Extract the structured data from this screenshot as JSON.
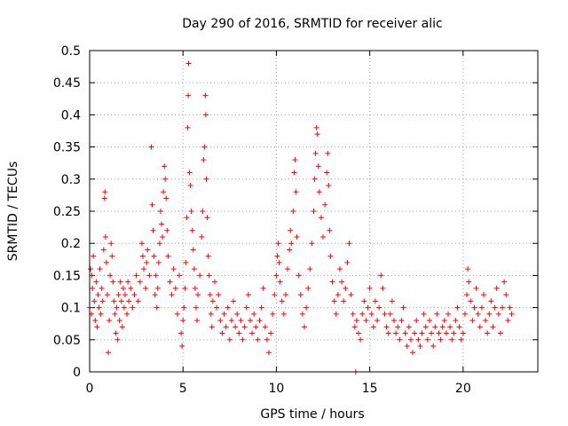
{
  "chart_data": {
    "type": "scatter",
    "title": "Day 290 of 2016, SRMTID for receiver alic",
    "xlabel": "GPS time / hours",
    "ylabel": "SRMTID / TECUs",
    "xlim": [
      0,
      24
    ],
    "ylim": [
      0,
      0.5
    ],
    "xticks": [
      0,
      5,
      10,
      15,
      20
    ],
    "xtick_labels": [
      "0",
      "5",
      "10",
      "15",
      "20"
    ],
    "yticks": [
      0,
      0.05,
      0.1,
      0.15,
      0.2,
      0.25,
      0.3,
      0.35,
      0.4,
      0.45,
      0.5
    ],
    "ytick_labels": [
      "0",
      "0.05",
      "0.1",
      "0.15",
      "0.2",
      "0.25",
      "0.3",
      "0.35",
      "0.4",
      "0.45",
      "0.5"
    ],
    "grid": true,
    "marker": "+",
    "series": [
      {
        "name": "SRMTID",
        "color": "#ff0000",
        "points": [
          [
            0.0,
            0.1
          ],
          [
            0.05,
            0.16
          ],
          [
            0.1,
            0.09
          ],
          [
            0.12,
            0.15
          ],
          [
            0.15,
            0.13
          ],
          [
            0.2,
            0.18
          ],
          [
            0.25,
            0.11
          ],
          [
            0.3,
            0.08
          ],
          [
            0.35,
            0.14
          ],
          [
            0.4,
            0.07
          ],
          [
            0.45,
            0.12
          ],
          [
            0.5,
            0.1
          ],
          [
            0.55,
            0.16
          ],
          [
            0.6,
            0.09
          ],
          [
            0.65,
            0.13
          ],
          [
            0.7,
            0.11
          ],
          [
            0.75,
            0.19
          ],
          [
            0.8,
            0.27
          ],
          [
            0.82,
            0.28
          ],
          [
            0.85,
            0.21
          ],
          [
            0.9,
            0.17
          ],
          [
            0.95,
            0.12
          ],
          [
            1.0,
            0.03
          ],
          [
            1.05,
            0.08
          ],
          [
            1.1,
            0.15
          ],
          [
            1.15,
            0.2
          ],
          [
            1.2,
            0.18
          ],
          [
            1.25,
            0.14
          ],
          [
            1.3,
            0.11
          ],
          [
            1.35,
            0.09
          ],
          [
            1.4,
            0.06
          ],
          [
            1.45,
            0.1
          ],
          [
            1.5,
            0.05
          ],
          [
            1.55,
            0.12
          ],
          [
            1.6,
            0.08
          ],
          [
            1.65,
            0.14
          ],
          [
            1.7,
            0.11
          ],
          [
            1.75,
            0.07
          ],
          [
            1.8,
            0.13
          ],
          [
            1.85,
            0.1
          ],
          [
            1.9,
            0.12
          ],
          [
            2.0,
            0.09
          ],
          [
            2.05,
            0.14
          ],
          [
            2.1,
            0.11
          ],
          [
            2.2,
            0.13
          ],
          [
            2.3,
            0.1
          ],
          [
            2.4,
            0.12
          ],
          [
            2.5,
            0.15
          ],
          [
            2.6,
            0.11
          ],
          [
            2.7,
            0.14
          ],
          [
            2.8,
            0.2
          ],
          [
            2.85,
            0.18
          ],
          [
            2.9,
            0.16
          ],
          [
            3.0,
            0.13
          ],
          [
            3.05,
            0.17
          ],
          [
            3.1,
            0.19
          ],
          [
            3.2,
            0.15
          ],
          [
            3.3,
            0.35
          ],
          [
            3.35,
            0.26
          ],
          [
            3.4,
            0.22
          ],
          [
            3.45,
            0.18
          ],
          [
            3.5,
            0.12
          ],
          [
            3.55,
            0.15
          ],
          [
            3.6,
            0.1
          ],
          [
            3.65,
            0.13
          ],
          [
            3.7,
            0.17
          ],
          [
            3.75,
            0.2
          ],
          [
            3.8,
            0.25
          ],
          [
            3.85,
            0.23
          ],
          [
            3.9,
            0.21
          ],
          [
            3.95,
            0.28
          ],
          [
            4.0,
            0.32
          ],
          [
            4.05,
            0.3
          ],
          [
            4.1,
            0.27
          ],
          [
            4.15,
            0.22
          ],
          [
            4.2,
            0.18
          ],
          [
            4.3,
            0.14
          ],
          [
            4.4,
            0.12
          ],
          [
            4.5,
            0.16
          ],
          [
            4.6,
            0.13
          ],
          [
            4.7,
            0.09
          ],
          [
            4.8,
            0.15
          ],
          [
            4.9,
            0.06
          ],
          [
            4.95,
            0.04
          ],
          [
            5.0,
            0.08
          ],
          [
            5.05,
            0.1
          ],
          [
            5.1,
            0.13
          ],
          [
            5.15,
            0.17
          ],
          [
            5.2,
            0.24
          ],
          [
            5.25,
            0.38
          ],
          [
            5.28,
            0.43
          ],
          [
            5.3,
            0.48
          ],
          [
            5.35,
            0.31
          ],
          [
            5.4,
            0.29
          ],
          [
            5.45,
            0.25
          ],
          [
            5.5,
            0.22
          ],
          [
            5.55,
            0.19
          ],
          [
            5.6,
            0.16
          ],
          [
            5.65,
            0.13
          ],
          [
            5.7,
            0.1
          ],
          [
            5.75,
            0.08
          ],
          [
            5.8,
            0.12
          ],
          [
            5.9,
            0.15
          ],
          [
            6.0,
            0.21
          ],
          [
            6.05,
            0.25
          ],
          [
            6.1,
            0.33
          ],
          [
            6.15,
            0.35
          ],
          [
            6.2,
            0.43
          ],
          [
            6.22,
            0.4
          ],
          [
            6.25,
            0.3
          ],
          [
            6.3,
            0.24
          ],
          [
            6.35,
            0.18
          ],
          [
            6.4,
            0.15
          ],
          [
            6.45,
            0.12
          ],
          [
            6.5,
            0.09
          ],
          [
            6.55,
            0.07
          ],
          [
            6.6,
            0.11
          ],
          [
            6.7,
            0.14
          ],
          [
            6.8,
            0.1
          ],
          [
            6.9,
            0.12
          ],
          [
            7.0,
            0.08
          ],
          [
            7.1,
            0.06
          ],
          [
            7.2,
            0.09
          ],
          [
            7.3,
            0.07
          ],
          [
            7.4,
            0.1
          ],
          [
            7.5,
            0.05
          ],
          [
            7.6,
            0.08
          ],
          [
            7.7,
            0.11
          ],
          [
            7.8,
            0.07
          ],
          [
            7.9,
            0.09
          ],
          [
            8.0,
            0.06
          ],
          [
            8.1,
            0.08
          ],
          [
            8.2,
            0.05
          ],
          [
            8.3,
            0.07
          ],
          [
            8.4,
            0.1
          ],
          [
            8.5,
            0.12
          ],
          [
            8.6,
            0.08
          ],
          [
            8.7,
            0.06
          ],
          [
            8.8,
            0.09
          ],
          [
            8.9,
            0.07
          ],
          [
            9.0,
            0.05
          ],
          [
            9.1,
            0.08
          ],
          [
            9.2,
            0.1
          ],
          [
            9.3,
            0.13
          ],
          [
            9.4,
            0.07
          ],
          [
            9.5,
            0.05
          ],
          [
            9.6,
            0.03
          ],
          [
            9.7,
            0.06
          ],
          [
            9.8,
            0.09
          ],
          [
            9.9,
            0.12
          ],
          [
            10.0,
            0.15
          ],
          [
            10.05,
            0.18
          ],
          [
            10.1,
            0.2
          ],
          [
            10.15,
            0.17
          ],
          [
            10.2,
            0.14
          ],
          [
            10.3,
            0.11
          ],
          [
            10.4,
            0.09
          ],
          [
            10.5,
            0.12
          ],
          [
            10.6,
            0.16
          ],
          [
            10.7,
            0.19
          ],
          [
            10.75,
            0.22
          ],
          [
            10.8,
            0.2
          ],
          [
            10.9,
            0.25
          ],
          [
            10.95,
            0.31
          ],
          [
            11.0,
            0.33
          ],
          [
            11.05,
            0.28
          ],
          [
            11.1,
            0.21
          ],
          [
            11.2,
            0.15
          ],
          [
            11.3,
            0.12
          ],
          [
            11.4,
            0.09
          ],
          [
            11.5,
            0.07
          ],
          [
            11.6,
            0.1
          ],
          [
            11.7,
            0.13
          ],
          [
            11.8,
            0.16
          ],
          [
            11.9,
            0.2
          ],
          [
            12.0,
            0.25
          ],
          [
            12.05,
            0.3
          ],
          [
            12.1,
            0.34
          ],
          [
            12.15,
            0.38
          ],
          [
            12.2,
            0.37
          ],
          [
            12.25,
            0.32
          ],
          [
            12.3,
            0.28
          ],
          [
            12.4,
            0.24
          ],
          [
            12.5,
            0.21
          ],
          [
            12.6,
            0.26
          ],
          [
            12.7,
            0.31
          ],
          [
            12.75,
            0.34
          ],
          [
            12.8,
            0.29
          ],
          [
            12.85,
            0.22
          ],
          [
            12.9,
            0.18
          ],
          [
            13.0,
            0.14
          ],
          [
            13.1,
            0.11
          ],
          [
            13.2,
            0.09
          ],
          [
            13.3,
            0.12
          ],
          [
            13.4,
            0.16
          ],
          [
            13.5,
            0.14
          ],
          [
            13.6,
            0.11
          ],
          [
            13.7,
            0.13
          ],
          [
            13.8,
            0.17
          ],
          [
            13.9,
            0.2
          ],
          [
            14.0,
            0.12
          ],
          [
            14.1,
            0.09
          ],
          [
            14.2,
            0.07
          ],
          [
            14.25,
            0.0
          ],
          [
            14.3,
            0.08
          ],
          [
            14.4,
            0.06
          ],
          [
            14.5,
            0.05
          ],
          [
            14.6,
            0.09
          ],
          [
            14.7,
            0.11
          ],
          [
            14.8,
            0.08
          ],
          [
            14.9,
            0.1
          ],
          [
            15.0,
            0.13
          ],
          [
            15.1,
            0.09
          ],
          [
            15.2,
            0.07
          ],
          [
            15.3,
            0.11
          ],
          [
            15.4,
            0.08
          ],
          [
            15.5,
            0.1
          ],
          [
            15.6,
            0.15
          ],
          [
            15.7,
            0.13
          ],
          [
            15.8,
            0.09
          ],
          [
            15.9,
            0.07
          ],
          [
            16.0,
            0.06
          ],
          [
            16.1,
            0.09
          ],
          [
            16.2,
            0.11
          ],
          [
            16.3,
            0.08
          ],
          [
            16.4,
            0.06
          ],
          [
            16.5,
            0.07
          ],
          [
            16.6,
            0.05
          ],
          [
            16.7,
            0.08
          ],
          [
            16.8,
            0.1
          ],
          [
            16.9,
            0.06
          ],
          [
            17.0,
            0.04
          ],
          [
            17.1,
            0.07
          ],
          [
            17.2,
            0.05
          ],
          [
            17.3,
            0.03
          ],
          [
            17.4,
            0.06
          ],
          [
            17.5,
            0.08
          ],
          [
            17.6,
            0.05
          ],
          [
            17.7,
            0.04
          ],
          [
            17.8,
            0.06
          ],
          [
            17.9,
            0.09
          ],
          [
            18.0,
            0.07
          ],
          [
            18.1,
            0.05
          ],
          [
            18.2,
            0.08
          ],
          [
            18.3,
            0.06
          ],
          [
            18.4,
            0.04
          ],
          [
            18.5,
            0.07
          ],
          [
            18.6,
            0.09
          ],
          [
            18.7,
            0.06
          ],
          [
            18.8,
            0.05
          ],
          [
            18.9,
            0.07
          ],
          [
            19.0,
            0.08
          ],
          [
            19.1,
            0.06
          ],
          [
            19.2,
            0.09
          ],
          [
            19.3,
            0.07
          ],
          [
            19.4,
            0.05
          ],
          [
            19.5,
            0.06
          ],
          [
            19.6,
            0.08
          ],
          [
            19.7,
            0.1
          ],
          [
            19.8,
            0.07
          ],
          [
            19.9,
            0.05
          ],
          [
            20.0,
            0.06
          ],
          [
            20.1,
            0.09
          ],
          [
            20.2,
            0.12
          ],
          [
            20.25,
            0.16
          ],
          [
            20.3,
            0.14
          ],
          [
            20.4,
            0.11
          ],
          [
            20.5,
            0.08
          ],
          [
            20.6,
            0.1
          ],
          [
            20.7,
            0.13
          ],
          [
            20.8,
            0.09
          ],
          [
            20.9,
            0.07
          ],
          [
            21.0,
            0.1
          ],
          [
            21.1,
            0.12
          ],
          [
            21.2,
            0.08
          ],
          [
            21.3,
            0.06
          ],
          [
            21.4,
            0.09
          ],
          [
            21.5,
            0.11
          ],
          [
            21.6,
            0.07
          ],
          [
            21.7,
            0.1
          ],
          [
            21.8,
            0.13
          ],
          [
            21.9,
            0.09
          ],
          [
            22.0,
            0.06
          ],
          [
            22.1,
            0.1
          ],
          [
            22.2,
            0.14
          ],
          [
            22.3,
            0.12
          ],
          [
            22.4,
            0.08
          ],
          [
            22.5,
            0.1
          ],
          [
            22.6,
            0.09
          ]
        ]
      }
    ]
  }
}
